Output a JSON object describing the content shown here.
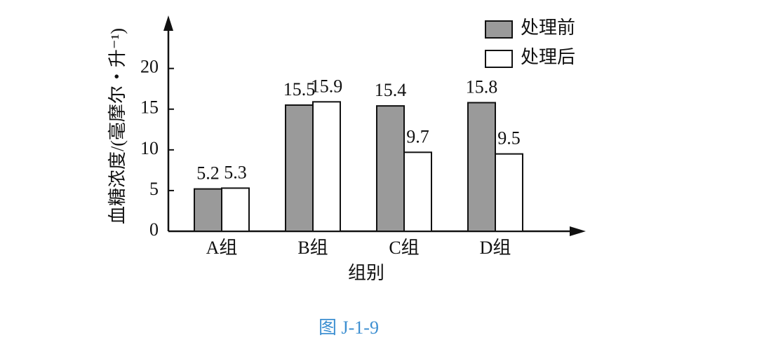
{
  "chart_data": {
    "type": "bar",
    "y_label": "血糖浓度/(毫摩尔・升⁻¹)",
    "x_label": "组别",
    "caption": "图 J-1-9",
    "categories": [
      "A组",
      "B组",
      "C组",
      "D组"
    ],
    "series": [
      {
        "name": "处理前",
        "color": "#9a9a9a",
        "values": [
          5.2,
          15.5,
          15.4,
          15.8
        ]
      },
      {
        "name": "处理后",
        "color": "#ffffff",
        "values": [
          5.3,
          15.9,
          9.7,
          9.5
        ]
      }
    ],
    "ylim": [
      0,
      26
    ],
    "yticks": [
      0,
      5,
      10,
      15,
      20
    ],
    "grid": false,
    "legend": "top-right"
  }
}
